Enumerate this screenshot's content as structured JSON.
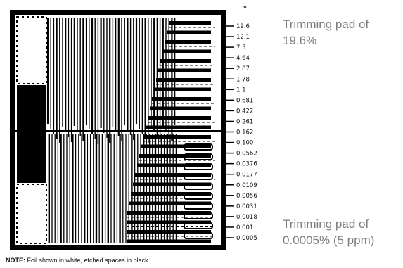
{
  "diagram": {
    "top_marker": "»",
    "trim_values": [
      "19.6",
      "12.1",
      "7.5",
      "4.64",
      "2.87",
      "1.78",
      "1.1",
      "0.681",
      "0.422",
      "0.261",
      "0.162",
      "0.100",
      "0.0562",
      "0.0376",
      "0.0177",
      "0.0109",
      "0.0056",
      "0.0031",
      "0.0018",
      "0.001",
      "0.0005"
    ]
  },
  "callouts": {
    "top_line1": "Trimming pad of",
    "top_line2": "19.6%",
    "bottom_line1": "Trimming pad of",
    "bottom_line2": "0.0005% (5 ppm)"
  },
  "note": {
    "label": "NOTE:",
    "text": "Foil shown in white, etched spaces in black."
  }
}
